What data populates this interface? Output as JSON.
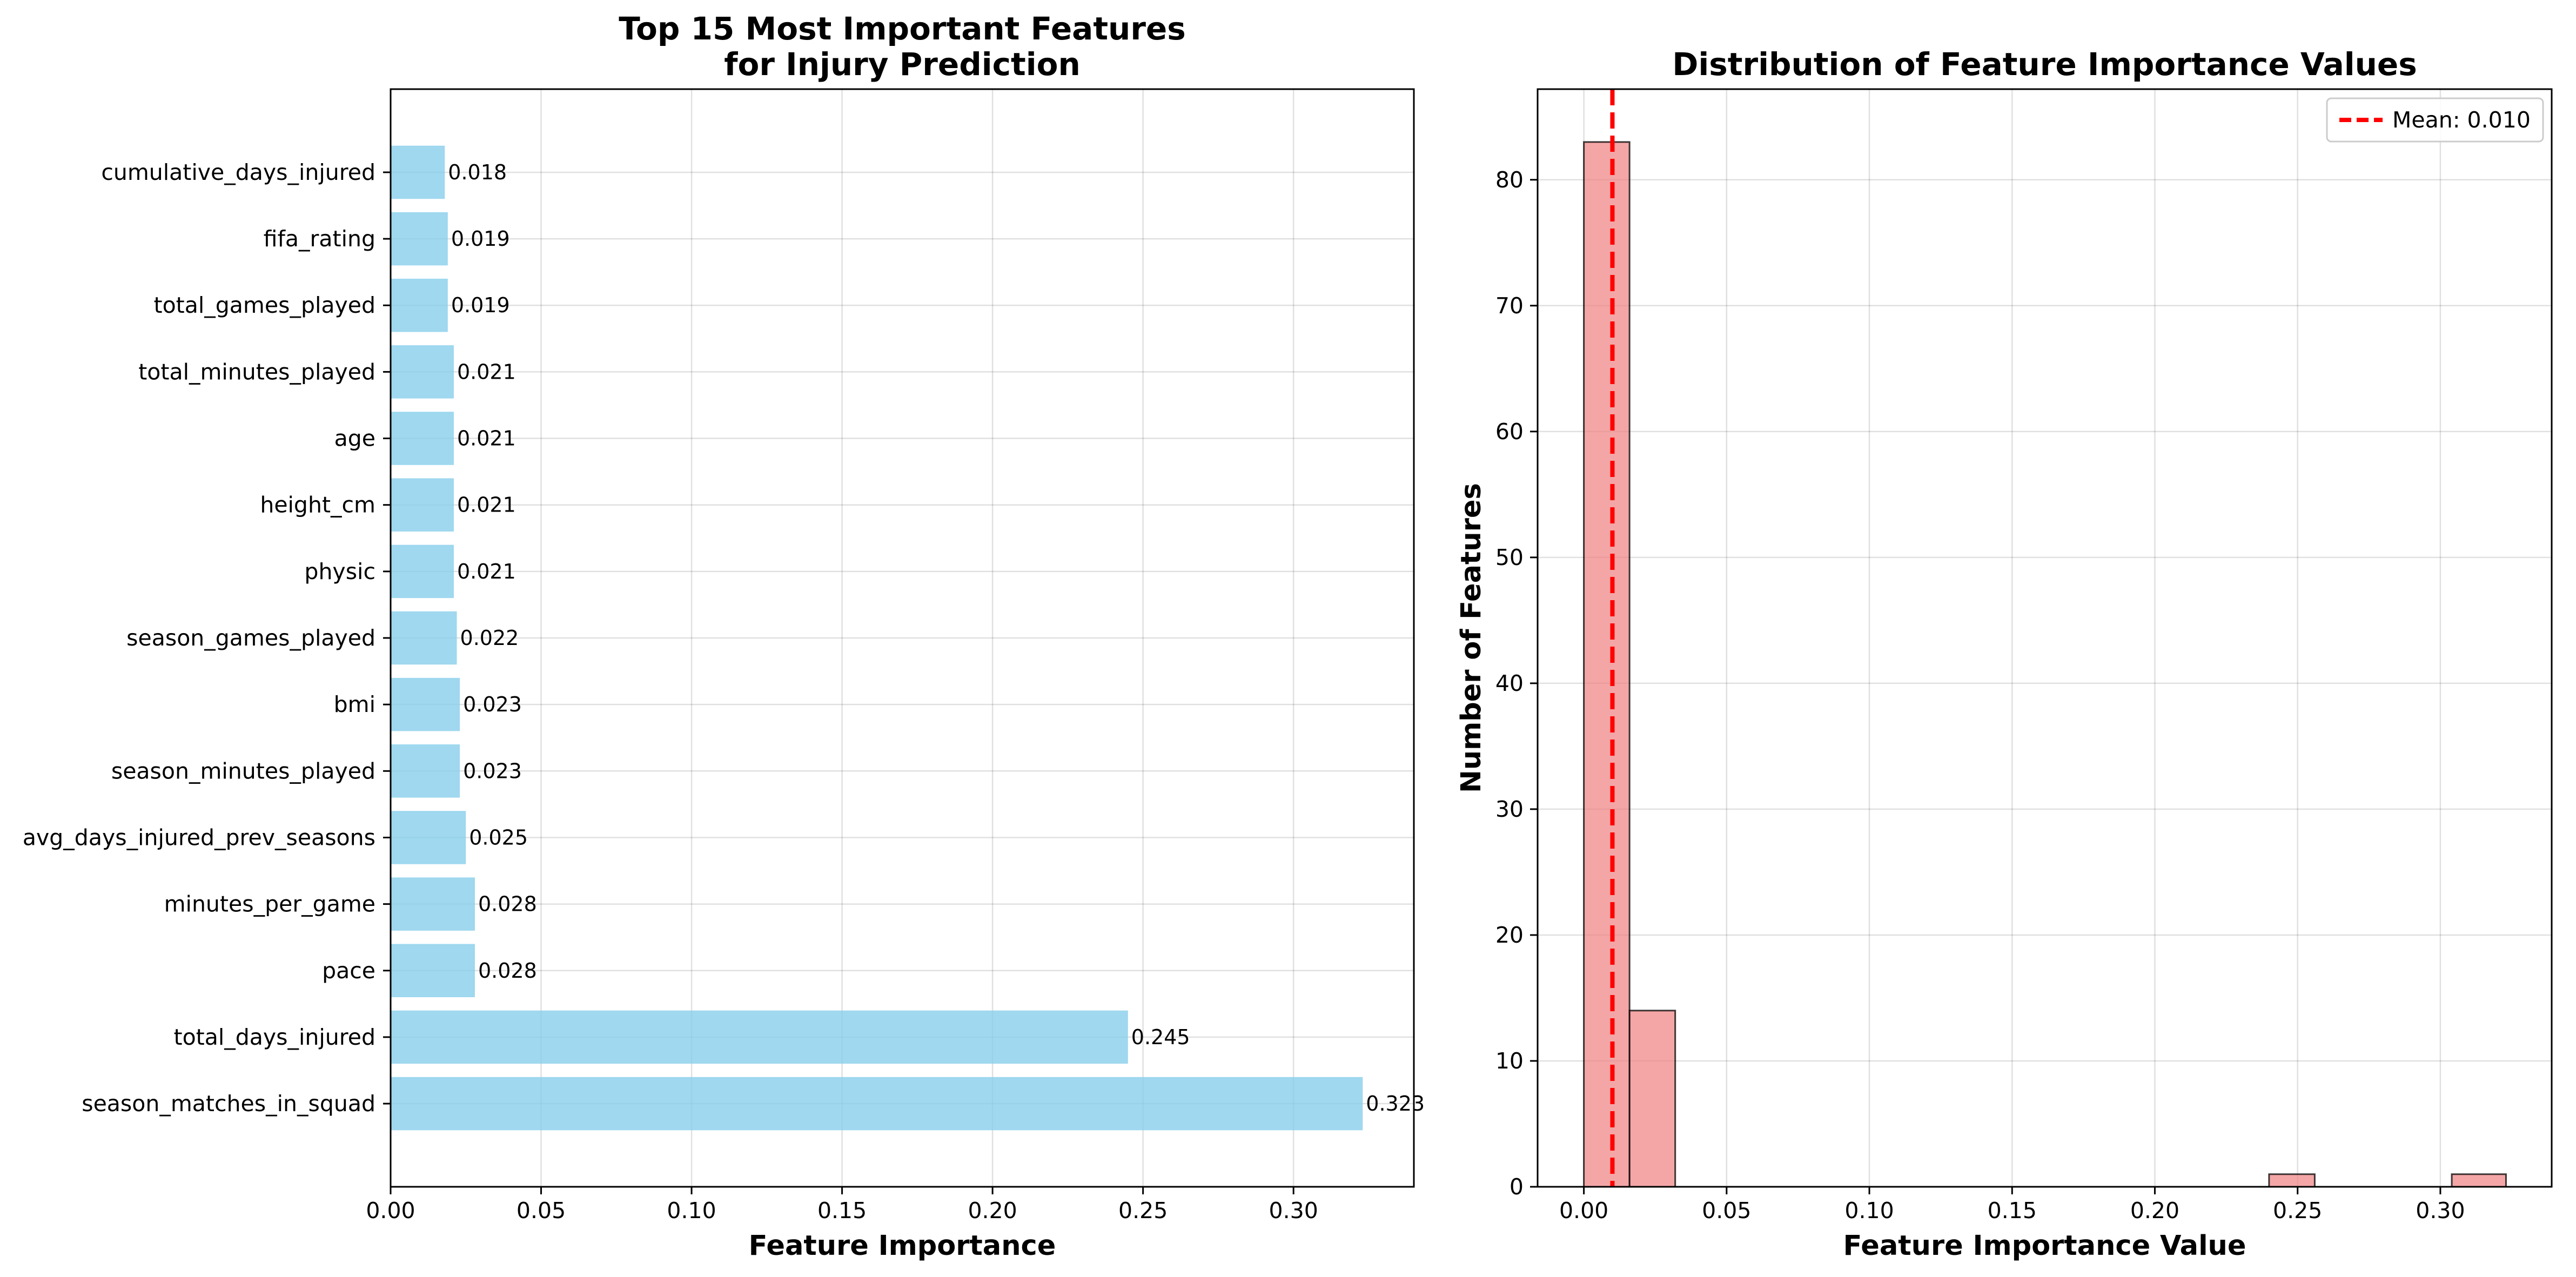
{
  "chart_data": [
    {
      "type": "bar",
      "orientation": "horizontal",
      "title": "Top 15 Most Important Features\nfor Injury Prediction",
      "xlabel": "Feature Importance",
      "ylabel": "",
      "categories": [
        "season_matches_in_squad",
        "total_days_injured",
        "pace",
        "minutes_per_game",
        "avg_days_injured_prev_seasons",
        "season_minutes_played",
        "bmi",
        "season_games_played",
        "physic",
        "height_cm",
        "age",
        "total_minutes_played",
        "total_games_played",
        "fifa_rating",
        "cumulative_days_injured"
      ],
      "values": [
        0.323,
        0.245,
        0.028,
        0.028,
        0.025,
        0.023,
        0.023,
        0.022,
        0.021,
        0.021,
        0.021,
        0.021,
        0.019,
        0.019,
        0.018
      ],
      "data_labels": [
        "0.323",
        "0.245",
        "0.028",
        "0.028",
        "0.025",
        "0.023",
        "0.023",
        "0.022",
        "0.021",
        "0.021",
        "0.021",
        "0.021",
        "0.019",
        "0.019",
        "0.018"
      ],
      "xlim": [
        0,
        0.34
      ],
      "xticks": [
        0.0,
        0.05,
        0.1,
        0.15,
        0.2,
        0.25,
        0.3
      ],
      "xtick_labels": [
        "0.00",
        "0.05",
        "0.10",
        "0.15",
        "0.20",
        "0.25",
        "0.30"
      ],
      "grid": true,
      "bar_color": "#87CEEB"
    },
    {
      "type": "histogram",
      "title": "Distribution of Feature Importance Values",
      "xlabel": "Feature Importance Value",
      "ylabel": "Number of Features",
      "bin_edges": [
        0.0,
        0.016,
        0.032,
        0.048,
        0.064,
        0.08,
        0.096,
        0.112,
        0.128,
        0.144,
        0.16,
        0.176,
        0.192,
        0.208,
        0.224,
        0.24,
        0.256,
        0.272,
        0.288,
        0.304,
        0.323
      ],
      "counts": [
        83,
        14,
        0,
        0,
        0,
        0,
        0,
        0,
        0,
        0,
        0,
        0,
        0,
        0,
        0,
        1,
        0,
        0,
        0,
        1
      ],
      "xlim": [
        -0.0162,
        0.339
      ],
      "ylim": [
        0,
        87.2
      ],
      "xticks": [
        0.0,
        0.05,
        0.1,
        0.15,
        0.2,
        0.25,
        0.3
      ],
      "xtick_labels": [
        "0.00",
        "0.05",
        "0.10",
        "0.15",
        "0.20",
        "0.25",
        "0.30"
      ],
      "yticks": [
        0,
        10,
        20,
        30,
        40,
        50,
        60,
        70,
        80
      ],
      "ytick_labels": [
        "0",
        "10",
        "20",
        "30",
        "40",
        "50",
        "60",
        "70",
        "80"
      ],
      "mean_line": {
        "value": 0.01,
        "label": "Mean: 0.010",
        "color": "#ff0000"
      },
      "legend": "top-right",
      "grid": true,
      "bar_color": "#F08080"
    }
  ]
}
